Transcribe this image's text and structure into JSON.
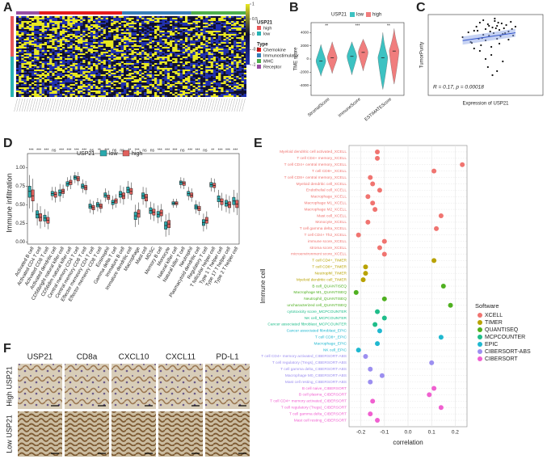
{
  "panel_labels": [
    "A",
    "B",
    "C",
    "D",
    "E",
    "F"
  ],
  "chart_data": [
    {
      "type": "heatmap",
      "legends": [
        {
          "title": "USP21",
          "items": [
            {
              "name": "high",
              "color": "#e8595a"
            },
            {
              "name": "low",
              "color": "#27b3b3"
            }
          ]
        },
        {
          "title": "Type",
          "items": [
            {
              "name": "Chemokine",
              "color": "#e41a1c"
            },
            {
              "name": "Immunostimulator",
              "color": "#377eb8"
            },
            {
              "name": "MHC",
              "color": "#4daf4a"
            },
            {
              "name": "Receptor",
              "color": "#984ea3"
            }
          ]
        }
      ],
      "scale_ticks": [
        1,
        0.5,
        0,
        -0.5,
        -1
      ],
      "scale_lim": [
        -1,
        1
      ]
    },
    {
      "type": "violin",
      "ylabel": "TME score",
      "legend_title": "USP21",
      "categories": [
        "StromalScore",
        "ImmuneScore",
        "ESTIMATEScore"
      ],
      "series": [
        {
          "name": "low",
          "color": "#3cc2c2",
          "values": [
            [
              -2600,
              -300,
              2200
            ],
            [
              -2400,
              400,
              2600
            ],
            [
              -4600,
              200,
              4000
            ]
          ]
        },
        {
          "name": "high",
          "color": "#f07d7d",
          "values": [
            [
              -2200,
              200,
              2600
            ],
            [
              -1800,
              1000,
              3000
            ],
            [
              -3800,
              1200,
              4600
            ]
          ]
        }
      ],
      "significance": [
        "**",
        "***",
        "**"
      ],
      "ylim": [
        -5500,
        5500
      ],
      "yticks": [
        4000,
        2000,
        0,
        -2000,
        -4000
      ]
    },
    {
      "type": "scatter",
      "xlabel": "Expression of USP21",
      "ylabel": "TumorPurity",
      "annotation": "R = 0.17, p = 0.00018",
      "xlim": [
        0,
        1
      ],
      "ylim": [
        0,
        1
      ],
      "x": [
        0.3,
        0.35,
        0.38,
        0.4,
        0.42,
        0.44,
        0.45,
        0.46,
        0.48,
        0.5,
        0.5,
        0.52,
        0.53,
        0.54,
        0.55,
        0.56,
        0.57,
        0.58,
        0.6,
        0.6,
        0.62,
        0.63,
        0.64,
        0.65,
        0.66,
        0.68,
        0.7,
        0.72,
        0.74,
        0.76,
        0.45,
        0.5,
        0.55,
        0.6,
        0.65,
        0.4,
        0.48,
        0.58,
        0.62,
        0.7,
        0.52,
        0.56,
        0.43,
        0.67,
        0.59,
        0.47,
        0.53,
        0.61,
        0.73,
        0.37
      ],
      "y": [
        0.72,
        0.78,
        0.65,
        0.8,
        0.85,
        0.7,
        0.9,
        0.62,
        0.75,
        0.82,
        0.68,
        0.88,
        0.74,
        0.79,
        0.6,
        0.84,
        0.77,
        0.92,
        0.7,
        0.86,
        0.81,
        0.73,
        0.89,
        0.76,
        0.83,
        0.87,
        0.79,
        0.91,
        0.74,
        0.85,
        0.55,
        0.45,
        0.5,
        0.3,
        0.42,
        0.58,
        0.93,
        0.95,
        0.64,
        0.69,
        0.35,
        0.25,
        0.8,
        0.77,
        0.83,
        0.71,
        0.86,
        0.9,
        0.82,
        0.66
      ]
    },
    {
      "type": "box",
      "ylabel": "Immune infiltration",
      "legend_title": "USP21",
      "categories": [
        "Activated B cell",
        "Activated CD4 T cell",
        "Activated CD8 T cell",
        "Activated dendritic cell",
        "CD56bright natural killer cell",
        "CD56dim natural killer cell",
        "Central memory CD4 T cell",
        "Central memory CD8 T cell",
        "Effector memeory CD4 T cell",
        "Effector memeory CD8 T cell",
        "Eosinophil",
        "Gamma delta T cell",
        "Immature B cell",
        "Immature dendritic cell",
        "Macrophage",
        "Mast cell",
        "MDSC",
        "Memory B cell",
        "Monocyte",
        "Natural killer cell",
        "Natural killer T cell",
        "Neutrophil",
        "Plasmacytoid dendritic cell",
        "Regulatory T cell",
        "T follicular helper cell",
        "Type 1 T helper cell",
        "Type 17 T helper cell",
        "Type 2 T helper cell"
      ],
      "significance": [
        "***",
        "***",
        "***",
        "ns",
        "***",
        "***",
        "***",
        "***",
        "ns",
        "**",
        "***",
        "ns",
        "ns",
        "**",
        "***",
        "ns",
        "ns",
        "***",
        "***",
        "***",
        "ns",
        "***",
        "***",
        "ns",
        "**",
        "***",
        "***",
        "***"
      ],
      "series": [
        {
          "name": "low",
          "color": "#2aa9ad",
          "values": [
            [
              0.6,
              0.68,
              0.75
            ],
            [
              0.32,
              0.37,
              0.42
            ],
            [
              0.28,
              0.32,
              0.36
            ],
            [
              0.62,
              0.65,
              0.68
            ],
            [
              0.62,
              0.66,
              0.7
            ],
            [
              0.75,
              0.78,
              0.81
            ],
            [
              0.84,
              0.87,
              0.89
            ],
            [
              0.72,
              0.75,
              0.78
            ],
            [
              0.45,
              0.48,
              0.51
            ],
            [
              0.47,
              0.5,
              0.53
            ],
            [
              0.6,
              0.63,
              0.66
            ],
            [
              0.5,
              0.53,
              0.56
            ],
            [
              0.6,
              0.64,
              0.68
            ],
            [
              0.66,
              0.7,
              0.74
            ],
            [
              0.3,
              0.35,
              0.4
            ],
            [
              0.58,
              0.62,
              0.66
            ],
            [
              0.38,
              0.42,
              0.46
            ],
            [
              0.33,
              0.37,
              0.41
            ],
            [
              0.17,
              0.22,
              0.27
            ],
            [
              0.5,
              0.52,
              0.54
            ],
            [
              0.77,
              0.8,
              0.82
            ],
            [
              0.62,
              0.65,
              0.68
            ],
            [
              0.44,
              0.47,
              0.5
            ],
            [
              0.22,
              0.26,
              0.3
            ],
            [
              0.74,
              0.77,
              0.8
            ],
            [
              0.54,
              0.58,
              0.62
            ],
            [
              0.48,
              0.52,
              0.56
            ],
            [
              0.5,
              0.55,
              0.6
            ]
          ]
        },
        {
          "name": "high",
          "color": "#e0605c",
          "values": [
            [
              0.55,
              0.62,
              0.7
            ],
            [
              0.28,
              0.33,
              0.38
            ],
            [
              0.25,
              0.29,
              0.33
            ],
            [
              0.6,
              0.64,
              0.67
            ],
            [
              0.65,
              0.68,
              0.71
            ],
            [
              0.77,
              0.8,
              0.83
            ],
            [
              0.82,
              0.85,
              0.88
            ],
            [
              0.7,
              0.73,
              0.76
            ],
            [
              0.43,
              0.46,
              0.49
            ],
            [
              0.45,
              0.48,
              0.51
            ],
            [
              0.57,
              0.6,
              0.63
            ],
            [
              0.52,
              0.55,
              0.58
            ],
            [
              0.58,
              0.62,
              0.66
            ],
            [
              0.64,
              0.68,
              0.72
            ],
            [
              0.33,
              0.38,
              0.43
            ],
            [
              0.55,
              0.6,
              0.64
            ],
            [
              0.36,
              0.4,
              0.44
            ],
            [
              0.35,
              0.39,
              0.43
            ],
            [
              0.19,
              0.24,
              0.29
            ],
            [
              0.5,
              0.52,
              0.54
            ],
            [
              0.76,
              0.79,
              0.81
            ],
            [
              0.6,
              0.63,
              0.66
            ],
            [
              0.42,
              0.45,
              0.48
            ],
            [
              0.25,
              0.29,
              0.33
            ],
            [
              0.73,
              0.76,
              0.79
            ],
            [
              0.5,
              0.54,
              0.58
            ],
            [
              0.46,
              0.5,
              0.54
            ],
            [
              0.46,
              0.51,
              0.56
            ]
          ]
        }
      ],
      "ylim": [
        -0.03,
        1.08
      ],
      "yticks": [
        {
          "value": 0,
          "label": "0.00"
        },
        {
          "value": 0.25,
          "label": "0.25"
        },
        {
          "value": 0.5,
          "label": "0.50"
        },
        {
          "value": 0.75,
          "label": "0.75"
        },
        {
          "value": 1,
          "label": "1.00"
        }
      ]
    },
    {
      "type": "dot",
      "xlabel": "correlation",
      "ylabel": "Immune cell",
      "legend_title": "Software",
      "xlim": [
        -0.25,
        0.25
      ],
      "xticks": [
        {
          "value": -0.2,
          "label": "-0.2"
        },
        {
          "value": -0.1,
          "label": "-0.1"
        },
        {
          "value": 0,
          "label": "0.0"
        },
        {
          "value": 0.1,
          "label": "0.1"
        },
        {
          "value": 0.2,
          "label": "0.2"
        }
      ],
      "series": [
        {
          "name": "XCELL",
          "color": "#f07470",
          "categories": [
            "Myeloid dendritic cell activated_XCELL",
            "T cell CD4+ memory_XCELL",
            "T cell CD4+ central memory_XCELL",
            "T cell CD8+_XCELL",
            "T cell CD8+ central memory_XCELL",
            "Myeloid dendritic cell_XCELL",
            "Endothelial cell_XCELL",
            "Macrophage_XCELL",
            "Macrophage M1_XCELL",
            "Macrophage M2_XCELL",
            "Mast cell_XCELL",
            "Monocyte_XCELL",
            "T cell gamma delta_XCELL",
            "T cell CD4+ Th2_XCELL",
            "immune score_XCELL",
            "stroma score_XCELL",
            "microenvironment score_XCELL"
          ],
          "values": [
            -0.13,
            -0.13,
            0.23,
            0.11,
            -0.16,
            -0.15,
            -0.12,
            -0.17,
            -0.15,
            -0.14,
            0.14,
            -0.17,
            0.12,
            -0.21,
            -0.1,
            -0.12,
            -0.1
          ]
        },
        {
          "name": "TIMER",
          "color": "#b8a200",
          "categories": [
            "T cell CD4+_TIMER",
            "T cell CD8+_TIMER",
            "Neutrophil_TIMER",
            "Myeloid dendritic cell_TIMER"
          ],
          "values": [
            0.11,
            -0.18,
            -0.18,
            -0.19
          ]
        },
        {
          "name": "QUANTISEQ",
          "color": "#4fb020",
          "categories": [
            "B cell_QUANTISEQ",
            "Macrophage M1_QUANTISEQ",
            "Neutrophil_QUANTISEQ",
            "uncharacterized cell_QUANTISEQ"
          ],
          "values": [
            0.15,
            -0.22,
            -0.1,
            0.18
          ]
        },
        {
          "name": "MCPCOUNTER",
          "color": "#1fbd8a",
          "categories": [
            "cytotoxicity score_MCPCOUNTER",
            "NK cell_MCPCOUNTER",
            "Cancer associated fibroblast_MCPCOUNTER"
          ],
          "values": [
            -0.13,
            -0.1,
            -0.14
          ]
        },
        {
          "name": "EPIC",
          "color": "#1fb8d0",
          "categories": [
            "Cancer associated fibroblast_EPIC",
            "T cell CD8+_EPIC",
            "Macrophage_EPIC",
            "NK cell_EPIC"
          ],
          "values": [
            -0.12,
            0.14,
            -0.13,
            -0.21
          ]
        },
        {
          "name": "CIBERSORT-ABS",
          "color": "#9c8ff0",
          "categories": [
            "T cell CD4+ memory activated_CIBERSORT-ABS",
            "T cell regulatory (Tregs)_CIBERSORT-ABS",
            "T cell gamma delta_CIBERSORT-ABS",
            "Macrophage M0_CIBERSORT-ABS",
            "Mast cell resting_CIBERSORT-ABS"
          ],
          "values": [
            -0.18,
            0.1,
            -0.16,
            -0.11,
            -0.16
          ]
        },
        {
          "name": "CIBERSORT",
          "color": "#f060d0",
          "categories": [
            "B cell naive_CIBERSORT",
            "B cell plasma_CIBERSORT",
            "T cell CD4+ memory activated_CIBERSORT",
            "T cell regulatory (Tregs)_CIBERSORT",
            "T cell gamma delta_CIBERSORT",
            "Mast cell resting_CIBERSORT"
          ],
          "values": [
            0.11,
            0.09,
            -0.15,
            0.14,
            -0.16,
            -0.13
          ]
        }
      ]
    }
  ],
  "ihc": {
    "columns": [
      "USP21",
      "CD8a",
      "CXCL10",
      "CXCL11",
      "PD-L1"
    ],
    "rows": [
      "High USP21",
      "Low USP21"
    ]
  }
}
